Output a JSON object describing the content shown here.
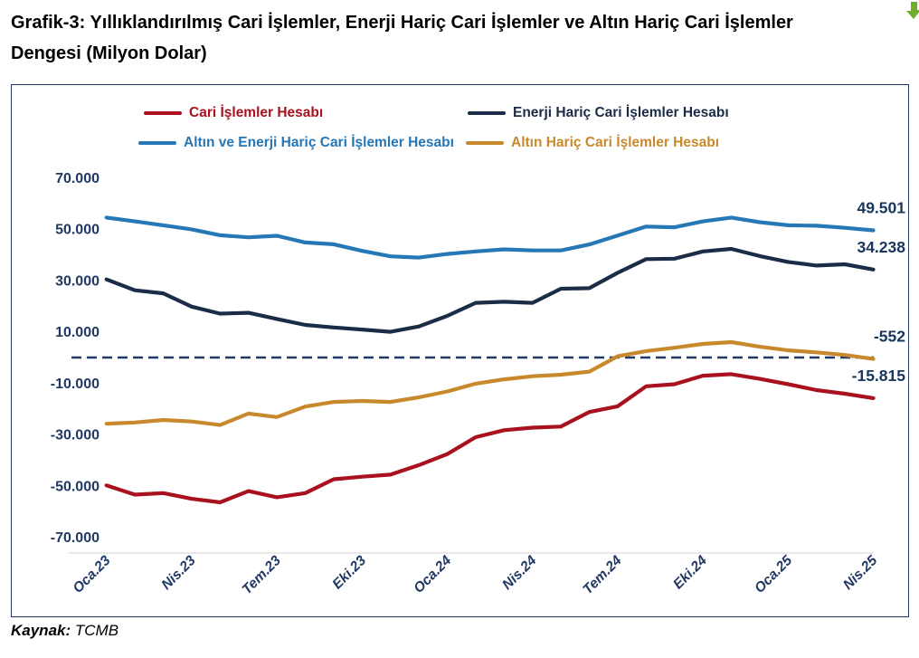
{
  "title": {
    "line1": "Grafik-3: Yıllıklandırılmış Cari İşlemler, Enerji Hariç Cari İşlemler ve Altın Hariç Cari İşlemler",
    "line2": "Dengesi (Milyon Dolar)"
  },
  "source": {
    "label": "Kaynak:",
    "value": "TCMB"
  },
  "icons": {
    "corner_arrow": "green-down-arrow",
    "corner_arrow_color": "#6FAE28"
  },
  "colors": {
    "frame_border": "#1F3864",
    "axis_text": "#1F3864",
    "zero_line": "#1F3864",
    "x_axis_line": "#D9D9D9"
  },
  "chart_data": {
    "type": "line",
    "title": "Yıllıklandırılmış Cari İşlemler, Enerji Hariç Cari İşlemler ve Altın Hariç Cari İşlemler Dengesi (Milyon Dolar)",
    "xlabel": "",
    "ylabel": "",
    "ylim": [
      -70000,
      70000
    ],
    "y_step": 20000,
    "grid": false,
    "legend_position": "top",
    "zero_line": {
      "style": "dashed",
      "color": "#1F3864"
    },
    "y_tick_values": [
      70000,
      50000,
      30000,
      10000,
      -10000,
      -30000,
      -50000,
      -70000
    ],
    "y_tick_labels": [
      "70.000",
      "50.000",
      "30.000",
      "10.000",
      "-10.000",
      "-30.000",
      "-50.000",
      "-70.000"
    ],
    "x_tick_labels": [
      "Oca.23",
      "Nis.23",
      "Tem.23",
      "Eki.23",
      "Oca.24",
      "Nis.24",
      "Tem.24",
      "Eki.24",
      "Oca.25",
      "Nis.25"
    ],
    "categories": [
      "Oca.23",
      "Şub.23",
      "Mar.23",
      "Nis.23",
      "May.23",
      "Haz.23",
      "Tem.23",
      "Ağu.23",
      "Eyl.23",
      "Eki.23",
      "Kas.23",
      "Ara.23",
      "Oca.24",
      "Şub.24",
      "Mar.24",
      "Nis.24",
      "May.24",
      "Haz.24",
      "Tem.24",
      "Ağu.24",
      "Eyl.24",
      "Eki.24",
      "Kas.24",
      "Ara.24",
      "Oca.25",
      "Şub.25",
      "Mar.25",
      "Nis.25"
    ],
    "series": [
      {
        "name": "Cari İşlemler Hesabı",
        "color": "#A9111E",
        "end_label": "-15.815",
        "values": [
          -49800,
          -53400,
          -52800,
          -55000,
          -56400,
          -52000,
          -54400,
          -52800,
          -47400,
          -46400,
          -45600,
          -41900,
          -37600,
          -31000,
          -28300,
          -27300,
          -26900,
          -21200,
          -19000,
          -11200,
          -10400,
          -7100,
          -6500,
          -8300,
          -10400,
          -12700,
          -14100,
          -15815
        ]
      },
      {
        "name": "Enerji Hariç Cari İşlemler Hesabı",
        "color": "#1B2C47",
        "end_label": "34.238",
        "values": [
          30400,
          26200,
          25000,
          19800,
          17100,
          17400,
          15000,
          12700,
          11700,
          10900,
          10000,
          12100,
          16200,
          21300,
          21700,
          21300,
          26800,
          27000,
          33000,
          38300,
          38500,
          41300,
          42300,
          39500,
          37200,
          35800,
          36300,
          34238
        ]
      },
      {
        "name": "Altın ve Enerji Hariç Cari İşlemler Hesabı",
        "color": "#2577B5",
        "end_label": "49.501",
        "values": [
          54500,
          53000,
          51500,
          49900,
          47600,
          46800,
          47400,
          44800,
          44100,
          41500,
          39400,
          38900,
          40300,
          41300,
          42100,
          41700,
          41700,
          44000,
          47500,
          51000,
          50700,
          53000,
          54500,
          52700,
          51500,
          51300,
          50500,
          49501
        ]
      },
      {
        "name": "Altın Hariç Cari İşlemler Hesabı",
        "color": "#C8892C",
        "end_label": "-552",
        "values": [
          -25800,
          -25300,
          -24300,
          -24900,
          -26300,
          -21800,
          -23200,
          -19100,
          -17300,
          -16900,
          -17300,
          -15500,
          -13200,
          -10200,
          -8500,
          -7300,
          -6700,
          -5500,
          500,
          2500,
          3800,
          5300,
          6000,
          4200,
          2800,
          2000,
          1000,
          -552
        ]
      }
    ]
  }
}
